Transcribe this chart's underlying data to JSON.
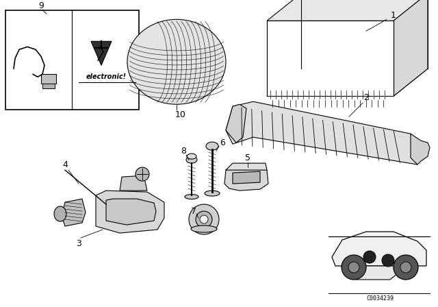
{
  "bg_color": "#ffffff",
  "line_color": "#000000",
  "fig_width": 6.4,
  "fig_height": 4.48,
  "dpi": 100,
  "catalog_code": "C0034239"
}
